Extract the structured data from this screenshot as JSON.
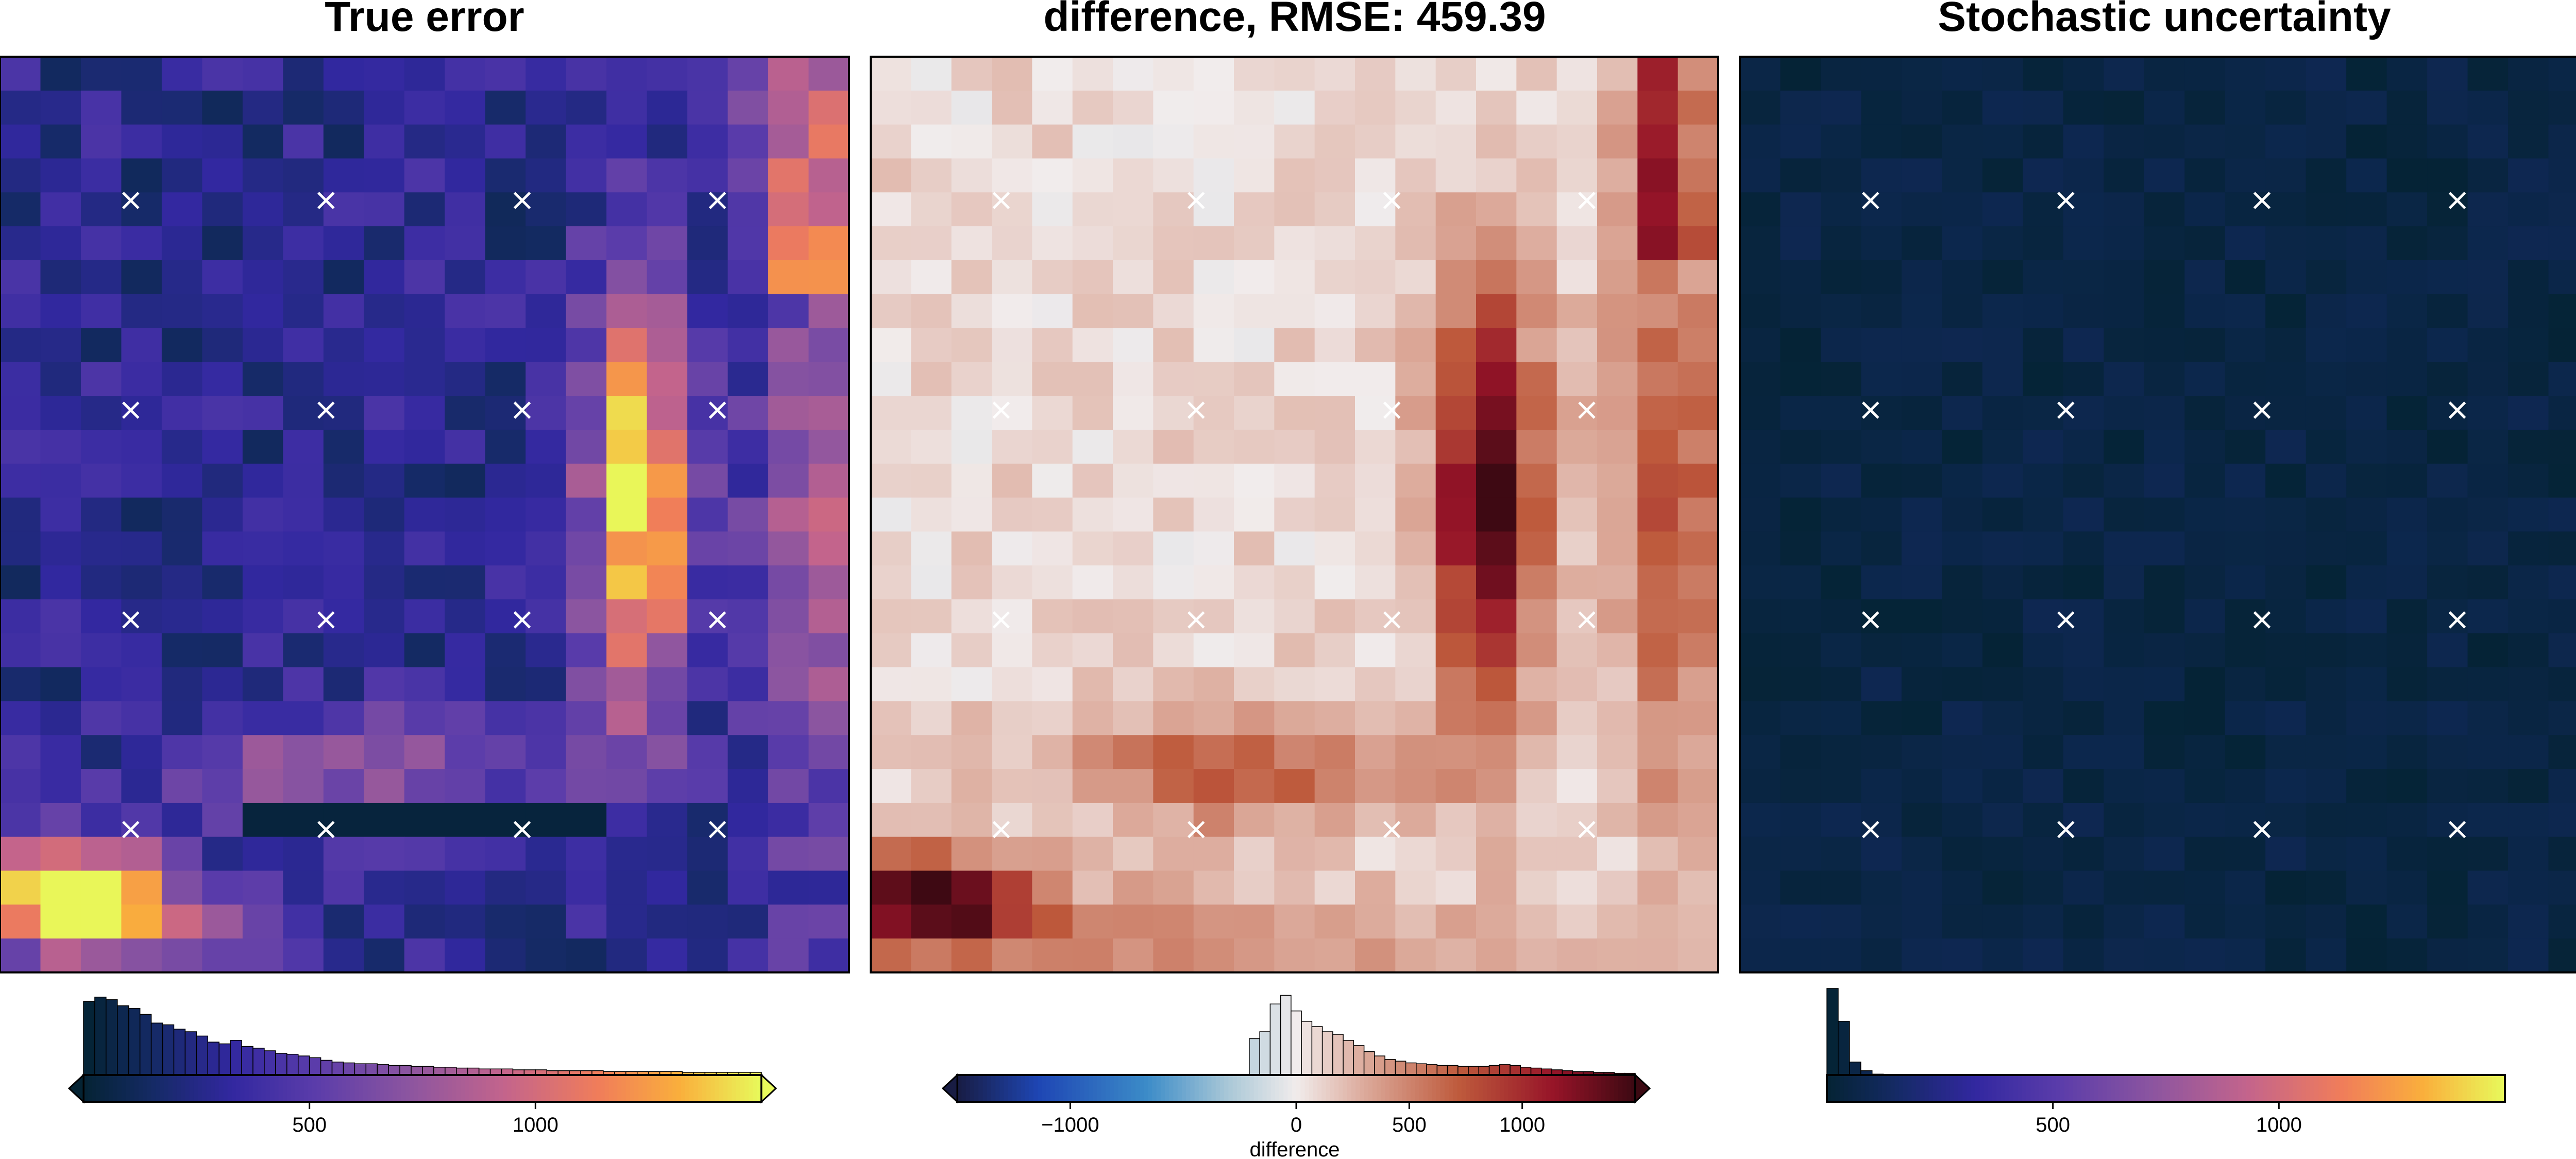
{
  "chart_data": [
    {
      "type": "heatmap",
      "title": "True error",
      "colormap": "thermal",
      "clim": [
        0,
        1500
      ],
      "grid": "21x27",
      "colorbar": {
        "ticks": [
          500,
          1000
        ],
        "tick_labels": [
          "500",
          "1000"
        ],
        "label": "",
        "extend": "both",
        "histogram": [
          0.85,
          0.9,
          0.87,
          0.8,
          0.77,
          0.7,
          0.6,
          0.58,
          0.53,
          0.5,
          0.45,
          0.38,
          0.36,
          0.4,
          0.33,
          0.31,
          0.28,
          0.25,
          0.24,
          0.22,
          0.2,
          0.17,
          0.15,
          0.14,
          0.13,
          0.13,
          0.12,
          0.11,
          0.11,
          0.1,
          0.1,
          0.09,
          0.09,
          0.08,
          0.08,
          0.07,
          0.07,
          0.07,
          0.06,
          0.06,
          0.06,
          0.05,
          0.05,
          0.05,
          0.05,
          0.05,
          0.04,
          0.04,
          0.04,
          0.04,
          0.04,
          0.04,
          0.04,
          0.03,
          0.03,
          0.03,
          0.03,
          0.03,
          0.03,
          0.03
        ]
      }
    },
    {
      "type": "heatmap",
      "title": "difference, RMSE: 459.39",
      "colormap": "balance",
      "clim": [
        -1500,
        1500
      ],
      "grid": "21x27",
      "colorbar": {
        "ticks": [
          -1000,
          0,
          500,
          1000
        ],
        "tick_labels": [
          "−1000",
          "0",
          "500",
          "1000"
        ],
        "label": "difference",
        "extend": "both",
        "histogram": [
          0,
          0,
          0,
          0,
          0,
          0,
          0,
          0,
          0,
          0,
          0,
          0,
          0,
          0,
          0,
          0,
          0,
          0,
          0,
          0,
          0,
          0,
          0,
          0,
          0,
          0,
          0,
          0,
          0.42,
          0.5,
          0.82,
          0.92,
          0.74,
          0.62,
          0.56,
          0.5,
          0.47,
          0.4,
          0.34,
          0.27,
          0.22,
          0.18,
          0.16,
          0.14,
          0.13,
          0.12,
          0.11,
          0.11,
          0.1,
          0.1,
          0.1,
          0.11,
          0.12,
          0.11,
          0.09,
          0.08,
          0.07,
          0.06,
          0.05,
          0.04,
          0.04,
          0.03,
          0.03,
          0.02,
          0.02
        ]
      }
    },
    {
      "type": "heatmap",
      "title": "Stochastic uncertainty",
      "colormap": "thermal",
      "clim": [
        0,
        1500
      ],
      "grid": "21x27",
      "colorbar": {
        "ticks": [
          500,
          1000
        ],
        "tick_labels": [
          "500",
          "1000"
        ],
        "label": "",
        "extend": "neither",
        "histogram": [
          1.0,
          0.62,
          0.15,
          0.05,
          0.01
        ]
      }
    }
  ]
}
